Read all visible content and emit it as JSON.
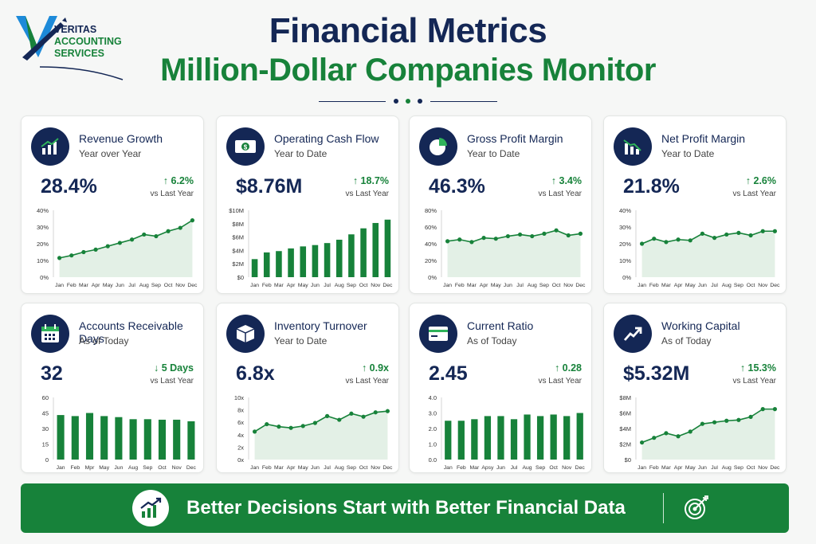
{
  "header": {
    "title": "Financial Metrics",
    "subtitle": "Million-Dollar Companies Monitor"
  },
  "logo": {
    "line1": "VERITAS",
    "line2": "ACCOUNTING",
    "line3": "SERVICES"
  },
  "colors": {
    "navy": "#142755",
    "green": "#17823a",
    "lightGreen": "#e3f0e6"
  },
  "cards": [
    {
      "title": "Revenue Growth",
      "subtitle": "Year over Year",
      "value": "28.4%",
      "change": "↑ 6.2%",
      "compare": "vs Last Year",
      "icon": "bar-growth-icon"
    },
    {
      "title": "Operating Cash Flow",
      "subtitle": "Year to Date",
      "value": "$8.76M",
      "change": "↑ 18.7%",
      "compare": "vs Last Year",
      "icon": "cash-icon"
    },
    {
      "title": "Gross Profit Margin",
      "subtitle": "Year to Date",
      "value": "46.3%",
      "change": "↑ 3.4%",
      "compare": "vs Last Year",
      "icon": "pie-icon"
    },
    {
      "title": "Net Profit Margin",
      "subtitle": "Year to Date",
      "value": "21.8%",
      "change": "↑ 2.6%",
      "compare": "vs Last Year",
      "icon": "bar-decline-icon"
    },
    {
      "title": "Accounts Receivable Days",
      "subtitle": "As of Today",
      "value": "32",
      "change": "↓ 5 Days",
      "compare": "vs Last Year",
      "icon": "calendar-icon"
    },
    {
      "title": "Inventory Turnover",
      "subtitle": "Year to Date",
      "value": "6.8x",
      "change": "↑ 0.9x",
      "compare": "vs Last Year",
      "icon": "box-icon"
    },
    {
      "title": "Current Ratio",
      "subtitle": "As of Today",
      "value": "2.45",
      "change": "↑ 0.28",
      "compare": "vs Last Year",
      "icon": "card-icon"
    },
    {
      "title": "Working Capital",
      "subtitle": "As of Today",
      "value": "$5.32M",
      "change": "↑ 15.3%",
      "compare": "vs Last Year",
      "icon": "trend-up-icon"
    }
  ],
  "chart_data": [
    {
      "type": "area",
      "categories": [
        "Jan",
        "Feb",
        "Mar",
        "Apr",
        "May",
        "Jun",
        "Jul",
        "Aug",
        "Sep",
        "Oct",
        "Nov",
        "Dec"
      ],
      "values": [
        11.5,
        13,
        15,
        16.5,
        18.5,
        20.5,
        22.5,
        25.5,
        24.5,
        27.5,
        29.5,
        34
      ],
      "yticks": [
        "0%",
        "10%",
        "20%",
        "30%",
        "40%"
      ],
      "ylim": [
        0,
        40
      ]
    },
    {
      "type": "bar",
      "categories": [
        "Jan",
        "Feb",
        "Mar",
        "Apr",
        "May",
        "Jun",
        "Jul",
        "Aug",
        "Sep",
        "Oct",
        "Nov",
        "Dec"
      ],
      "values": [
        2.7,
        3.7,
        3.9,
        4.3,
        4.6,
        4.8,
        5.1,
        5.6,
        6.4,
        7.3,
        8.1,
        8.6
      ],
      "yticks": [
        "$0",
        "$2M",
        "$4M",
        "$6M",
        "$8M",
        "$10M"
      ],
      "ylim": [
        0,
        10
      ]
    },
    {
      "type": "area",
      "categories": [
        "Jan",
        "Feb",
        "Mar",
        "Apr",
        "May",
        "Jun",
        "Jul",
        "Aug",
        "Sep",
        "Oct",
        "Nov",
        "Dec"
      ],
      "values": [
        43,
        45,
        42,
        47,
        46,
        49,
        51,
        49,
        52,
        56,
        50,
        52
      ],
      "yticks": [
        "0%",
        "20%",
        "40%",
        "60%",
        "80%"
      ],
      "ylim": [
        0,
        80
      ]
    },
    {
      "type": "area",
      "categories": [
        "Jan",
        "Feb",
        "Mar",
        "Apr",
        "May",
        "Jun",
        "Jul",
        "Aug",
        "Sep",
        "Oct",
        "Nov",
        "Dec"
      ],
      "values": [
        20,
        23,
        21,
        22.5,
        22,
        26,
        23.5,
        25.5,
        26.5,
        25,
        27.5,
        27.5
      ],
      "yticks": [
        "0%",
        "10%",
        "20%",
        "30%",
        "40%"
      ],
      "ylim": [
        0,
        40
      ]
    },
    {
      "type": "bar",
      "categories": [
        "Jan",
        "Feb",
        "Mpr",
        "May",
        "Jun",
        "Aug",
        "Sep",
        "Oct",
        "Nov",
        "Dec"
      ],
      "values": [
        43,
        42,
        45,
        42,
        41,
        39,
        39,
        38.5,
        38.5,
        37
      ],
      "yticks": [
        "0",
        "15",
        "30",
        "45",
        "60"
      ],
      "ylim": [
        0,
        60
      ]
    },
    {
      "type": "area",
      "categories": [
        "Jan",
        "Feb",
        "Mar",
        "Apr",
        "May",
        "Jun",
        "Jul",
        "Aug",
        "Sep",
        "Oct",
        "Nov",
        "Dec"
      ],
      "values": [
        4.5,
        5.7,
        5.3,
        5.1,
        5.4,
        5.9,
        7,
        6.4,
        7.4,
        6.9,
        7.6,
        7.8
      ],
      "yticks": [
        "0x",
        "2x",
        "4x",
        "6x",
        "8x",
        "10x"
      ],
      "ylim": [
        0,
        10
      ]
    },
    {
      "type": "bar",
      "categories": [
        "Jan",
        "Feb",
        "Mar",
        "Apsy",
        "Jun",
        "Jul",
        "Aug",
        "Sep",
        "Oct",
        "Nov",
        "Dec"
      ],
      "values": [
        2.5,
        2.5,
        2.6,
        2.8,
        2.8,
        2.6,
        2.9,
        2.8,
        2.9,
        2.8,
        3.0
      ],
      "yticks": [
        "0.0",
        "1.0",
        "2.0",
        "3.0",
        "4.0"
      ],
      "ylim": [
        0,
        4
      ]
    },
    {
      "type": "area",
      "categories": [
        "Jan",
        "Feb",
        "Mar",
        "Apr",
        "May",
        "Jun",
        "Jul",
        "Aug",
        "Sep",
        "Oct",
        "Nov",
        "Dec"
      ],
      "values": [
        2.2,
        2.8,
        3.4,
        3,
        3.6,
        4.6,
        4.8,
        5,
        5.1,
        5.5,
        6.5,
        6.5
      ],
      "yticks": [
        "$0",
        "$2M",
        "$4M",
        "$6M",
        "$8M"
      ],
      "ylim": [
        0,
        8
      ]
    }
  ],
  "banner": {
    "text": "Better Decisions Start with Better Financial Data",
    "icon": "growth-chart-icon",
    "right_icon": "target-icon"
  }
}
